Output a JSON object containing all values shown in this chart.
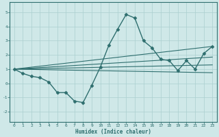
{
  "xlabel": "Humidex (Indice chaleur)",
  "ylabel": "",
  "xlim": [
    -0.5,
    23.5
  ],
  "ylim": [
    -2.7,
    5.7
  ],
  "yticks": [
    -2,
    -1,
    0,
    1,
    2,
    3,
    4,
    5
  ],
  "xticks": [
    0,
    1,
    2,
    3,
    4,
    5,
    6,
    7,
    8,
    9,
    10,
    11,
    12,
    13,
    14,
    15,
    16,
    17,
    18,
    19,
    20,
    21,
    22,
    23
  ],
  "background_color": "#cfe8e8",
  "line_color": "#2e6e6e",
  "grid_color": "#aacfcf",
  "lines": [
    {
      "x": [
        0,
        1,
        2,
        3,
        4,
        5,
        6,
        7,
        8,
        9,
        10,
        11,
        12,
        13,
        14,
        15,
        16,
        17,
        18,
        19,
        20,
        21,
        22,
        23
      ],
      "y": [
        1.0,
        0.7,
        0.5,
        0.4,
        0.1,
        -0.65,
        -0.65,
        -1.25,
        -1.35,
        -0.15,
        1.15,
        2.7,
        3.8,
        4.85,
        4.6,
        3.0,
        2.5,
        1.7,
        1.6,
        0.9,
        1.6,
        1.0,
        2.1,
        2.6
      ],
      "marker": "D",
      "markersize": 2.5,
      "linewidth": 1.0
    },
    {
      "x": [
        0,
        23
      ],
      "y": [
        1.0,
        2.6
      ],
      "marker": null,
      "linewidth": 0.8
    },
    {
      "x": [
        0,
        23
      ],
      "y": [
        1.0,
        1.85
      ],
      "marker": null,
      "linewidth": 0.8
    },
    {
      "x": [
        0,
        23
      ],
      "y": [
        1.0,
        1.3
      ],
      "marker": null,
      "linewidth": 0.8
    },
    {
      "x": [
        0,
        23
      ],
      "y": [
        1.0,
        0.75
      ],
      "marker": null,
      "linewidth": 0.8
    }
  ]
}
